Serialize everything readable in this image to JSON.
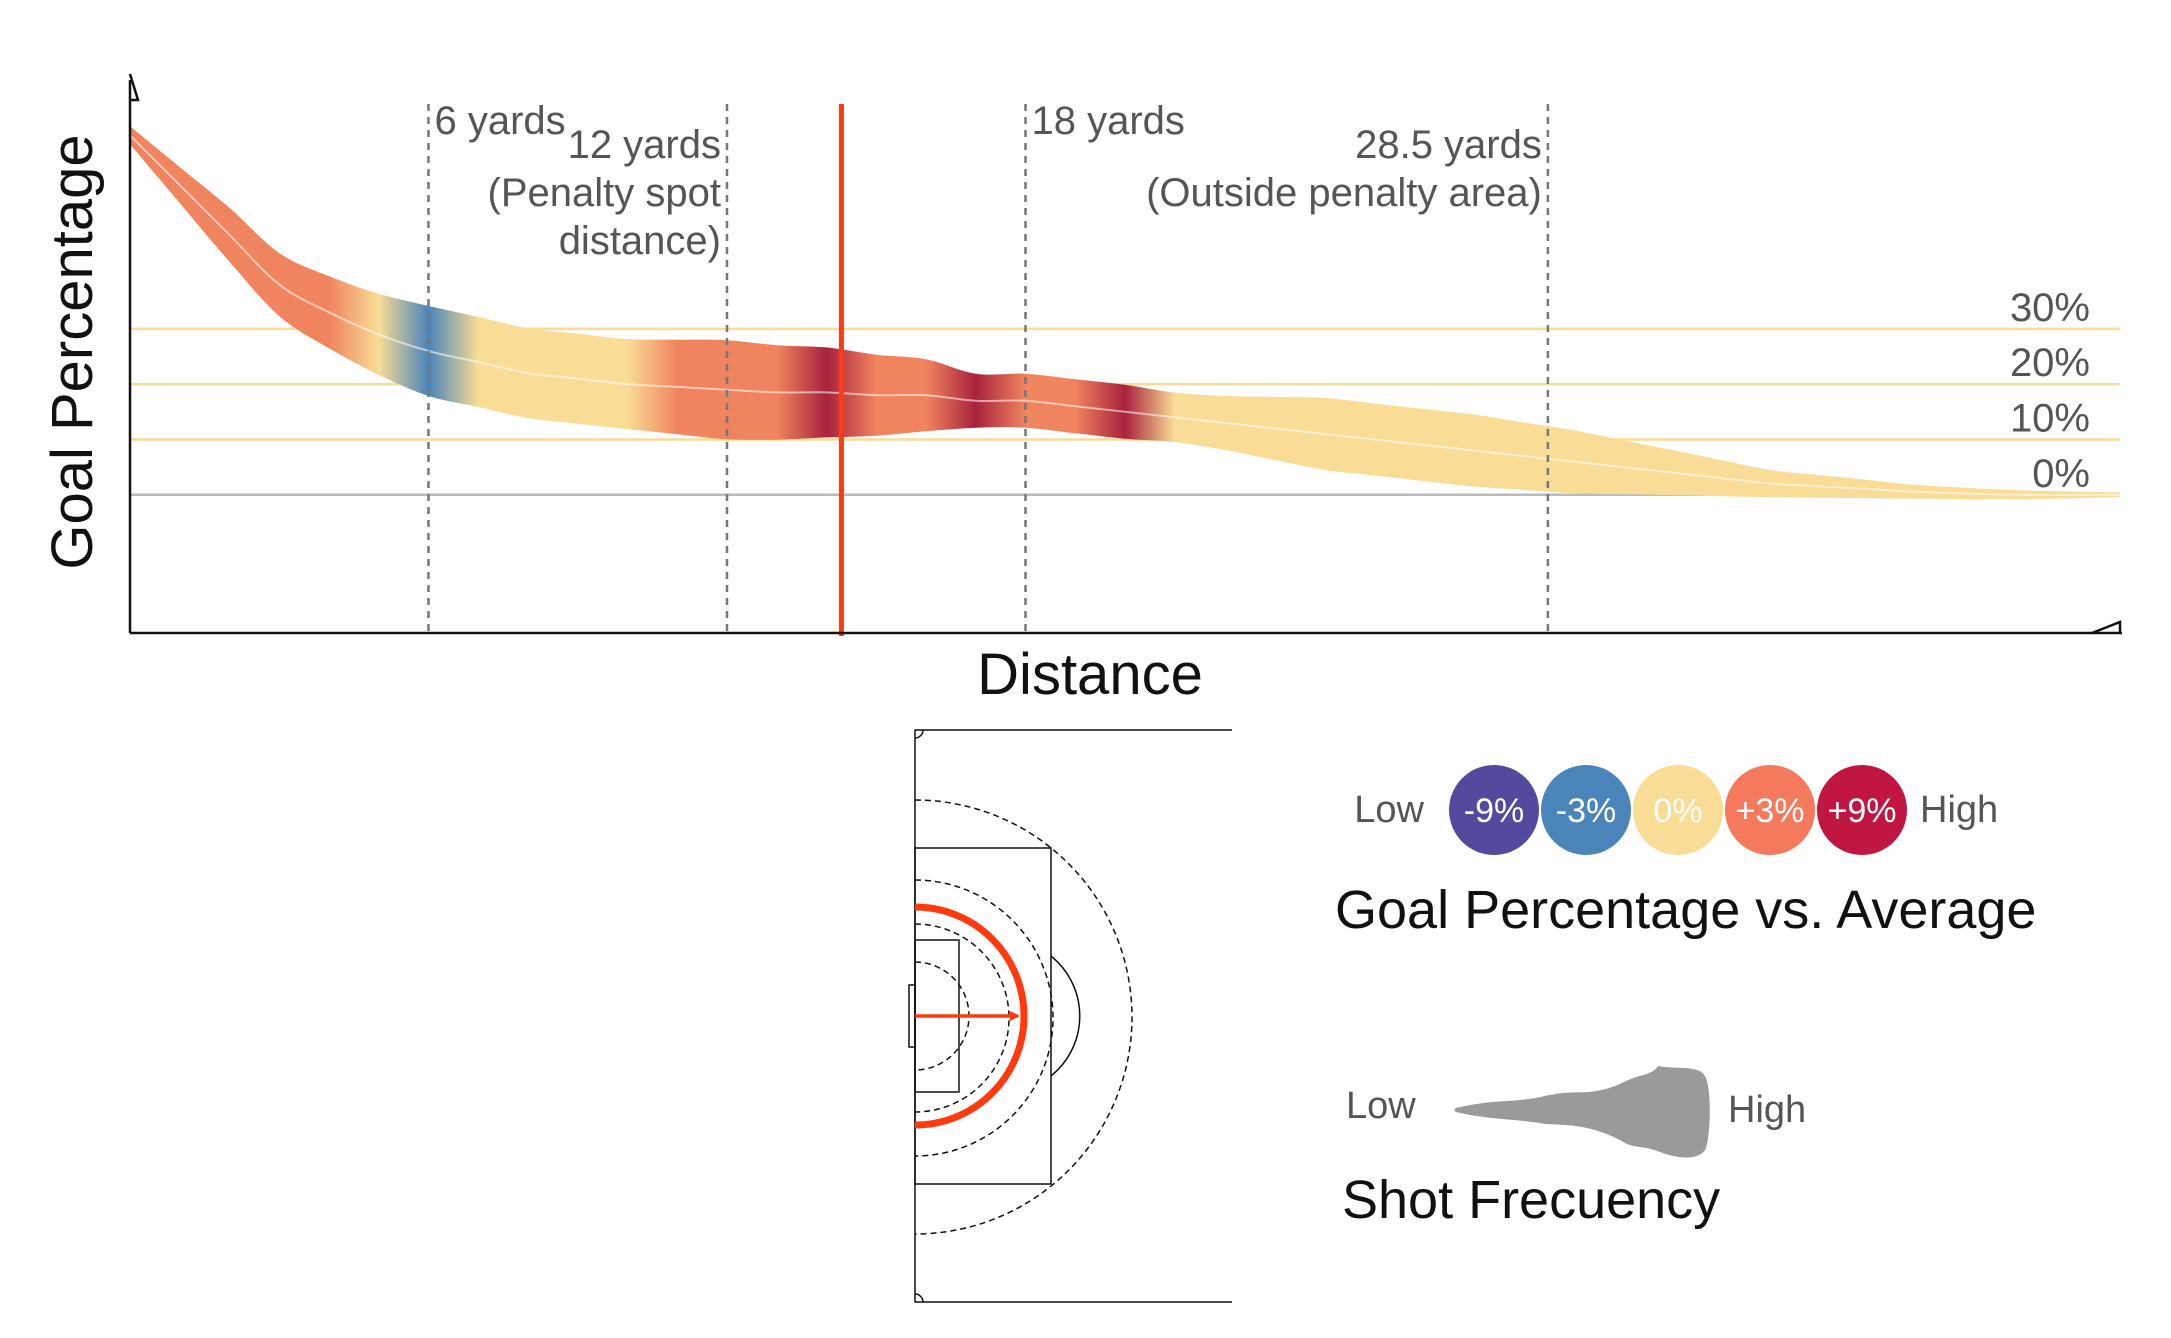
{
  "chart_data": {
    "type": "area",
    "xlabel": "Distance",
    "ylabel": "Goal Percentage",
    "ylim": [
      -25,
      75
    ],
    "y_gridlines": [
      {
        "value": 30,
        "label": "30%"
      },
      {
        "value": 20,
        "label": "20%"
      },
      {
        "value": 10,
        "label": "10%"
      },
      {
        "value": 0,
        "label": "0%"
      }
    ],
    "markers": [
      {
        "value": 6,
        "label_lines": [
          "6 yards"
        ],
        "align": "left"
      },
      {
        "value": 12,
        "label_lines": [
          "12 yards",
          "(Penalty spot",
          "distance)"
        ],
        "align": "right"
      },
      {
        "value": 18,
        "label_lines": [
          "18 yards"
        ],
        "align": "left"
      },
      {
        "value": 28.5,
        "label_lines": [
          "28.5 yards",
          "(Outside penalty area)"
        ],
        "align": "right"
      }
    ],
    "highlight_distance": 14.3,
    "xlim": [
      0,
      40
    ],
    "series": [
      {
        "distance": [
          0,
          1,
          2,
          3,
          4,
          5,
          6,
          7,
          8,
          9,
          10,
          11,
          12,
          13,
          14,
          15,
          16,
          17,
          18,
          19,
          20,
          21,
          22,
          23,
          24,
          25,
          26,
          27,
          28,
          29,
          30,
          31,
          32,
          33,
          34,
          35,
          36,
          38,
          40
        ],
        "goal_percentage": [
          65,
          56,
          47,
          38,
          33,
          29,
          26,
          24,
          22,
          21,
          20,
          19.5,
          19,
          18.5,
          18.5,
          18,
          18,
          17,
          17,
          16,
          15,
          14,
          13,
          12,
          11,
          10,
          9,
          8,
          7,
          6,
          5,
          4,
          3,
          2,
          1.5,
          1,
          0.5,
          0,
          0
        ],
        "shot_frequency": [
          2,
          4,
          6,
          7,
          8,
          9,
          10,
          10,
          10,
          10,
          10,
          10.5,
          11,
          10.5,
          10,
          9,
          8,
          6,
          6,
          6,
          6,
          5.5,
          6,
          7,
          8,
          8,
          8,
          8,
          7.5,
          7,
          6,
          5,
          4,
          3,
          2.5,
          2,
          1.5,
          1,
          0.5
        ],
        "vs_average": [
          3,
          3,
          3,
          3,
          3,
          2,
          -3,
          0,
          0,
          0,
          0,
          3,
          3,
          3,
          9,
          3,
          3,
          9,
          3,
          3,
          9,
          0,
          0,
          0,
          0,
          0,
          0,
          0,
          0,
          0,
          0,
          0,
          0,
          0,
          0,
          0,
          0,
          0,
          0
        ]
      }
    ]
  },
  "legend_color": {
    "title": "Goal Percentage vs. Average",
    "low": "Low",
    "high": "High",
    "items": [
      {
        "label": "-9%",
        "value": -9,
        "color": "#524a9c"
      },
      {
        "label": "-3%",
        "value": -3,
        "color": "#4a84b9"
      },
      {
        "label": "0%",
        "value": 0,
        "color": "#f9dc96"
      },
      {
        "label": "+3%",
        "value": 3,
        "color": "#f4795d"
      },
      {
        "label": "+9%",
        "value": 9,
        "color": "#c21642"
      }
    ]
  },
  "legend_width": {
    "title": "Shot Frecuency",
    "low": "Low",
    "high": "High"
  },
  "colors": {
    "highlight": "#ff3a0e",
    "gridline": "#f9dc96",
    "zero_line": "#bbbbbb",
    "marker_line": "#777777",
    "text": "#555555",
    "plus3": "#f0845f",
    "plus9": "#a8223c",
    "minus3": "#4a84b9",
    "zero": "#f9dc96"
  },
  "pitch_icon": {
    "type": "penalty-area-diagram"
  }
}
